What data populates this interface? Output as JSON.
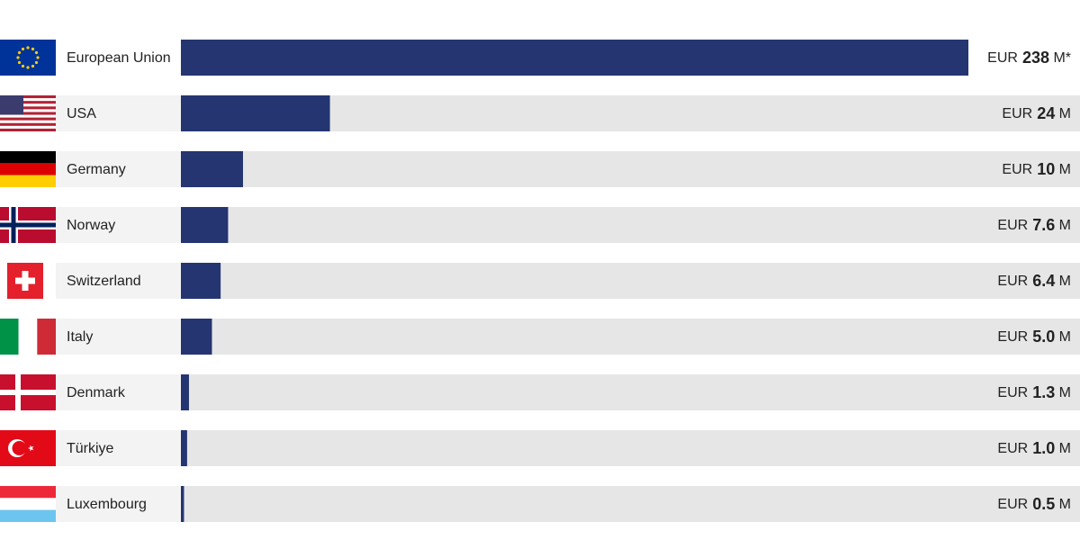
{
  "chart_data": {
    "type": "bar",
    "orientation": "horizontal",
    "categories": [
      "European Union",
      "USA",
      "Germany",
      "Norway",
      "Switzerland",
      "Italy",
      "Denmark",
      "Türkiye",
      "Luxembourg"
    ],
    "values": [
      238,
      24,
      10,
      7.6,
      6.4,
      5.0,
      1.3,
      1.0,
      0.5
    ],
    "value_labels": [
      "EUR 238 M*",
      "EUR 24 M",
      "EUR 10 M",
      "EUR 7.6 M",
      "EUR 6.4 M",
      "EUR 5.0 M",
      "EUR 1.3 M",
      "EUR 1.0 M",
      "EUR 0.5 M"
    ],
    "color": "#243571"
  }
}
